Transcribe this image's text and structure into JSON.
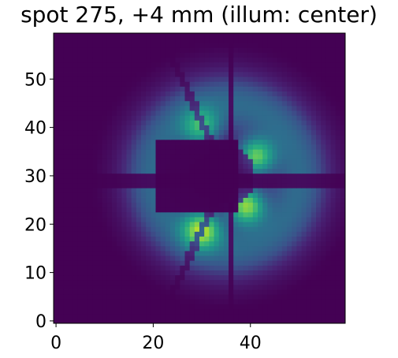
{
  "title": "spot 275, +4 mm (illum: center)",
  "chart_data": {
    "type": "heatmap",
    "title": "spot 275, +4 mm (illum: center)",
    "xlabel": "",
    "ylabel": "",
    "grid_size": [
      60,
      60
    ],
    "xlim": [
      -0.5,
      59.5
    ],
    "ylim": [
      -0.5,
      59.5
    ],
    "origin": "lower",
    "colormap": "viridis",
    "x_ticks": [
      0,
      20,
      40
    ],
    "y_ticks": [
      0,
      10,
      20,
      30,
      40,
      50
    ],
    "features": {
      "ring_center": [
        35,
        30
      ],
      "ring_inner_radius": 9,
      "ring_outer_radius": 26,
      "central_obscuration_x": [
        21,
        37
      ],
      "central_obscuration_y": [
        23,
        37
      ],
      "spider_vane_y": 29,
      "spider_vane_x": 36,
      "brightest_lobes": [
        {
          "x": 39,
          "y": 24,
          "value": 1.0
        },
        {
          "x": 41,
          "y": 34,
          "value": 0.9
        },
        {
          "x": 30,
          "y": 19,
          "value": 0.85
        },
        {
          "x": 30,
          "y": 40,
          "value": 0.6
        }
      ]
    }
  }
}
